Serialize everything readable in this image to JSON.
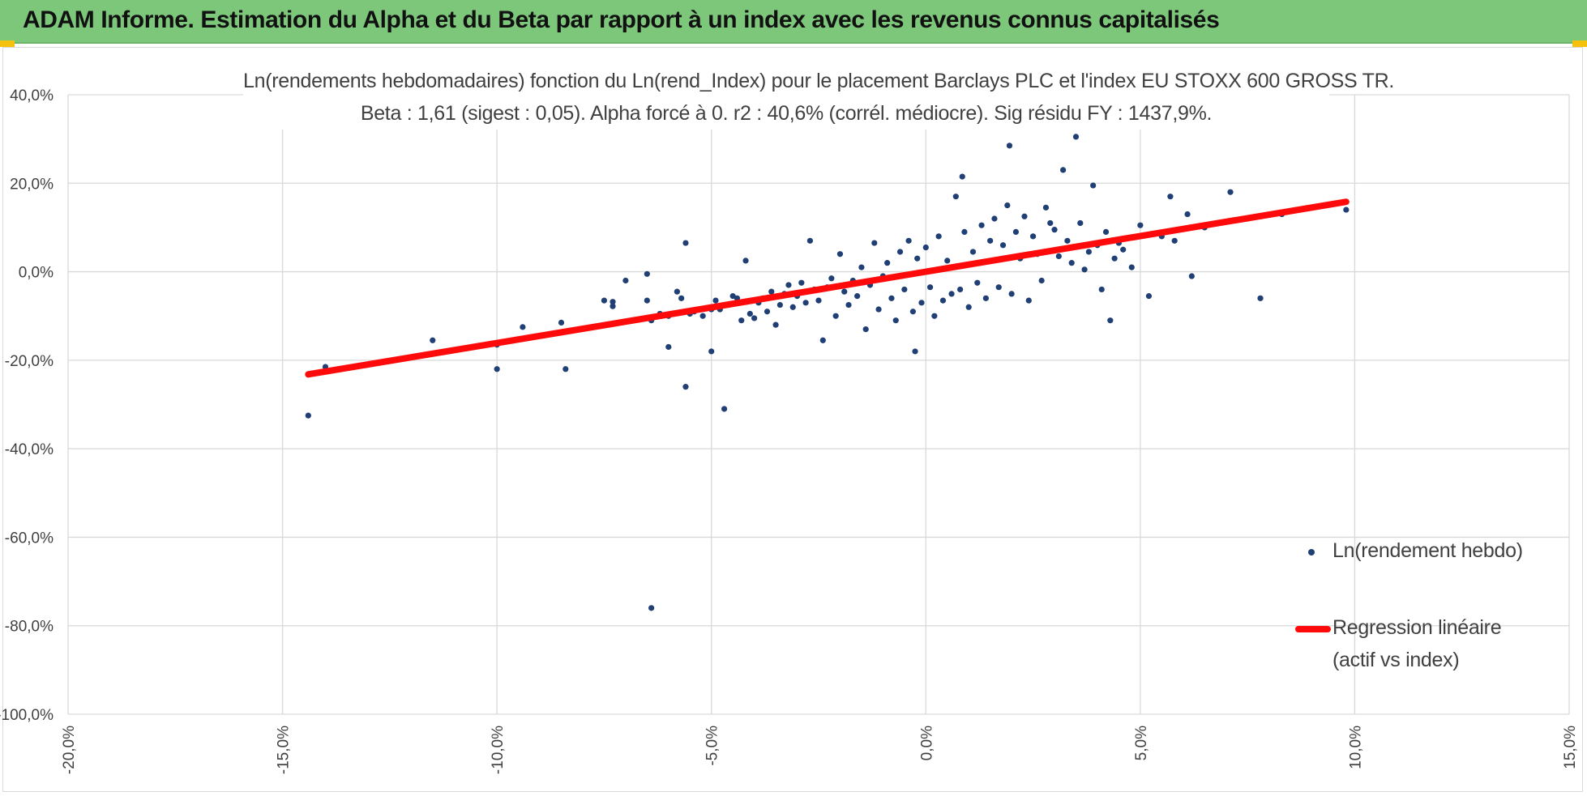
{
  "header": {
    "title": "ADAM Informe. Estimation du Alpha et du Beta par rapport à un index avec les revenus connus capitalisés",
    "background_color": "#7dc77a",
    "corner_color": "#f4c20d"
  },
  "chart_data": {
    "type": "scatter",
    "title": "Ln(rendements hebdomadaires) fonction du Ln(rend_Index) pour le placement Barclays PLC et l'index EU STOXX 600 GROSS TR.",
    "subtitle": "Beta : 1,61 (sigest : 0,05). Alpha forcé à 0. r2 : 40,6% (corrél. médiocre). Sig résidu FY : 1437,9%.",
    "xlim": [
      -20,
      15
    ],
    "ylim": [
      -100,
      40
    ],
    "x_unit": "%",
    "y_unit": "%",
    "x_ticks": [
      "-20,0%",
      "-15,0%",
      "-10,0%",
      "-5,0%",
      "0,0%",
      "5,0%",
      "10,0%",
      "15,0%"
    ],
    "x_tick_values": [
      -20,
      -15,
      -10,
      -5,
      0,
      5,
      10,
      15
    ],
    "y_ticks": [
      "40,0%",
      "20,0%",
      "0,0%",
      "-20,0%",
      "-40,0%",
      "-60,0%",
      "-80,0%",
      "-100,0%"
    ],
    "y_tick_values": [
      40,
      20,
      0,
      -20,
      -40,
      -60,
      -80,
      -100
    ],
    "grid": true,
    "legend_position": "right",
    "series": [
      {
        "name": "Ln(rendement hebdo)",
        "kind": "scatter",
        "color": "#203f74",
        "points": [
          [
            -14.4,
            -32.5
          ],
          [
            -14.0,
            -21.5
          ],
          [
            -11.5,
            -15.5
          ],
          [
            -10.0,
            -22.0
          ],
          [
            -10.0,
            -16.5
          ],
          [
            -9.4,
            -12.5
          ],
          [
            -8.4,
            -22.0
          ],
          [
            -8.5,
            -11.5
          ],
          [
            -7.5,
            -6.5
          ],
          [
            -7.3,
            -6.8
          ],
          [
            -7.3,
            -7.8
          ],
          [
            -7.0,
            -2.0
          ],
          [
            -6.5,
            -0.5
          ],
          [
            -6.5,
            -6.5
          ],
          [
            -6.4,
            -11.0
          ],
          [
            -6.4,
            -76.0
          ],
          [
            -6.2,
            -9.5
          ],
          [
            -6.0,
            -10.0
          ],
          [
            -6.0,
            -17.0
          ],
          [
            -5.8,
            -4.5
          ],
          [
            -5.7,
            -6.0
          ],
          [
            -5.6,
            -26.0
          ],
          [
            -5.6,
            6.5
          ],
          [
            -5.5,
            -9.5
          ],
          [
            -5.4,
            -9.0
          ],
          [
            -5.2,
            -10.0
          ],
          [
            -5.0,
            -8.5
          ],
          [
            -5.0,
            -18.0
          ],
          [
            -4.9,
            -6.5
          ],
          [
            -4.8,
            -8.5
          ],
          [
            -4.7,
            -31.0
          ],
          [
            -4.6,
            -7.5
          ],
          [
            -4.5,
            -5.5
          ],
          [
            -4.4,
            -6.0
          ],
          [
            -4.3,
            -11.0
          ],
          [
            -4.2,
            2.5
          ],
          [
            -4.1,
            -9.5
          ],
          [
            -4.0,
            -10.5
          ],
          [
            -3.9,
            -7.0
          ],
          [
            -3.8,
            -6.0
          ],
          [
            -3.7,
            -9.0
          ],
          [
            -3.6,
            -4.5
          ],
          [
            -3.5,
            -12.0
          ],
          [
            -3.4,
            -7.5
          ],
          [
            -3.3,
            -5.0
          ],
          [
            -3.2,
            -3.0
          ],
          [
            -3.1,
            -8.0
          ],
          [
            -3.0,
            -5.5
          ],
          [
            -2.9,
            -2.5
          ],
          [
            -2.8,
            -7.0
          ],
          [
            -2.7,
            7.0
          ],
          [
            -2.6,
            -4.0
          ],
          [
            -2.5,
            -6.5
          ],
          [
            -2.4,
            -15.5
          ],
          [
            -2.3,
            -3.5
          ],
          [
            -2.2,
            -1.5
          ],
          [
            -2.1,
            -10.0
          ],
          [
            -2.0,
            4.0
          ],
          [
            -1.9,
            -4.5
          ],
          [
            -1.8,
            -7.5
          ],
          [
            -1.7,
            -2.0
          ],
          [
            -1.6,
            -5.5
          ],
          [
            -1.5,
            1.0
          ],
          [
            -1.4,
            -13.0
          ],
          [
            -1.3,
            -3.0
          ],
          [
            -1.2,
            6.5
          ],
          [
            -1.1,
            -8.5
          ],
          [
            -1.0,
            -1.0
          ],
          [
            -0.9,
            2.0
          ],
          [
            -0.8,
            -6.0
          ],
          [
            -0.7,
            -11.0
          ],
          [
            -0.6,
            4.5
          ],
          [
            -0.5,
            -4.0
          ],
          [
            -0.4,
            7.0
          ],
          [
            -0.3,
            -9.0
          ],
          [
            -0.25,
            -18.0
          ],
          [
            -0.2,
            3.0
          ],
          [
            -0.1,
            -7.0
          ],
          [
            0.0,
            5.5
          ],
          [
            0.1,
            -3.5
          ],
          [
            0.2,
            -10.0
          ],
          [
            0.3,
            8.0
          ],
          [
            0.4,
            -6.5
          ],
          [
            0.5,
            2.5
          ],
          [
            0.6,
            -5.0
          ],
          [
            0.7,
            17.0
          ],
          [
            0.8,
            -4.0
          ],
          [
            0.85,
            21.5
          ],
          [
            0.9,
            9.0
          ],
          [
            1.0,
            -8.0
          ],
          [
            1.1,
            4.5
          ],
          [
            1.2,
            -2.5
          ],
          [
            1.3,
            10.5
          ],
          [
            1.4,
            -6.0
          ],
          [
            1.5,
            7.0
          ],
          [
            1.6,
            12.0
          ],
          [
            1.7,
            -3.5
          ],
          [
            1.8,
            6.0
          ],
          [
            1.9,
            15.0
          ],
          [
            1.95,
            28.5
          ],
          [
            2.0,
            -5.0
          ],
          [
            2.1,
            9.0
          ],
          [
            2.2,
            3.0
          ],
          [
            2.3,
            12.5
          ],
          [
            2.4,
            -6.5
          ],
          [
            2.5,
            8.0
          ],
          [
            2.6,
            4.0
          ],
          [
            2.7,
            -2.0
          ],
          [
            2.8,
            14.5
          ],
          [
            2.9,
            11.0
          ],
          [
            3.0,
            9.5
          ],
          [
            3.1,
            3.5
          ],
          [
            3.2,
            23.0
          ],
          [
            3.3,
            7.0
          ],
          [
            3.4,
            2.0
          ],
          [
            3.5,
            30.5
          ],
          [
            3.6,
            11.0
          ],
          [
            3.7,
            0.5
          ],
          [
            3.8,
            4.5
          ],
          [
            3.9,
            19.5
          ],
          [
            4.0,
            6.0
          ],
          [
            4.1,
            -4.0
          ],
          [
            4.2,
            9.0
          ],
          [
            4.3,
            -11.0
          ],
          [
            4.4,
            3.0
          ],
          [
            4.5,
            6.5
          ],
          [
            4.6,
            5.0
          ],
          [
            4.8,
            1.0
          ],
          [
            5.0,
            10.5
          ],
          [
            5.2,
            -5.5
          ],
          [
            5.5,
            8.0
          ],
          [
            5.7,
            17.0
          ],
          [
            5.8,
            7.0
          ],
          [
            6.1,
            13.0
          ],
          [
            6.2,
            -1.0
          ],
          [
            6.5,
            10.0
          ],
          [
            7.1,
            18.0
          ],
          [
            7.5,
            12.0
          ],
          [
            7.8,
            -6.0
          ],
          [
            8.3,
            13.0
          ],
          [
            9.8,
            14.0
          ]
        ]
      },
      {
        "name": "Regression linéaire",
        "name_line2": "(actif vs index)",
        "kind": "line",
        "color": "#ff0a0a",
        "x": [
          -14.4,
          9.8
        ],
        "y": [
          -23.2,
          15.8
        ]
      }
    ]
  }
}
